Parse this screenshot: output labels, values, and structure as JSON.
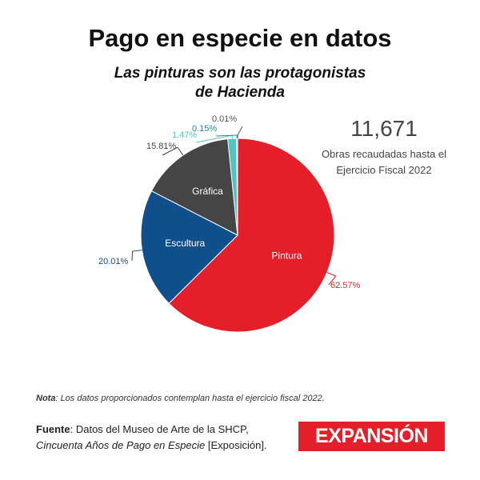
{
  "title": "Pago en especie en datos",
  "subtitle": "Las pinturas son las protagonistas de Hacienda",
  "stat": {
    "value": "11,671",
    "description": "Obras recaudadas hasta el Ejercicio Fiscal 2022"
  },
  "note": {
    "label": "Nota",
    "text": ": Los datos proporcionados contemplan hasta el ejercicio fiscal 2022."
  },
  "source": {
    "label": "Fuente",
    "text": ": Datos del Museo de Arte de la SHCP,",
    "italic": "Cincuenta Años de Pago en Especie",
    "suffix": " [Exposición]."
  },
  "logo": "EXPANSIÓN",
  "chart_data": {
    "type": "pie",
    "title": "Pago en especie en datos",
    "slices": [
      {
        "name": "Pintura",
        "value": 62.57,
        "label": "62.57%",
        "color": "#e41f2a"
      },
      {
        "name": "Escultura",
        "value": 20.01,
        "label": "20.01%",
        "color": "#0f4f8c"
      },
      {
        "name": "Gráfica",
        "value": 15.81,
        "label": "15.81%",
        "color": "#454545"
      },
      {
        "name": "",
        "value": 1.47,
        "label": "1.47%",
        "color": "#4fc4c0"
      },
      {
        "name": "",
        "value": 0.15,
        "label": "0.15%",
        "color": "#2b8a88"
      },
      {
        "name": "",
        "value": 0.01,
        "label": "0.01%",
        "color": "#555555"
      }
    ]
  }
}
